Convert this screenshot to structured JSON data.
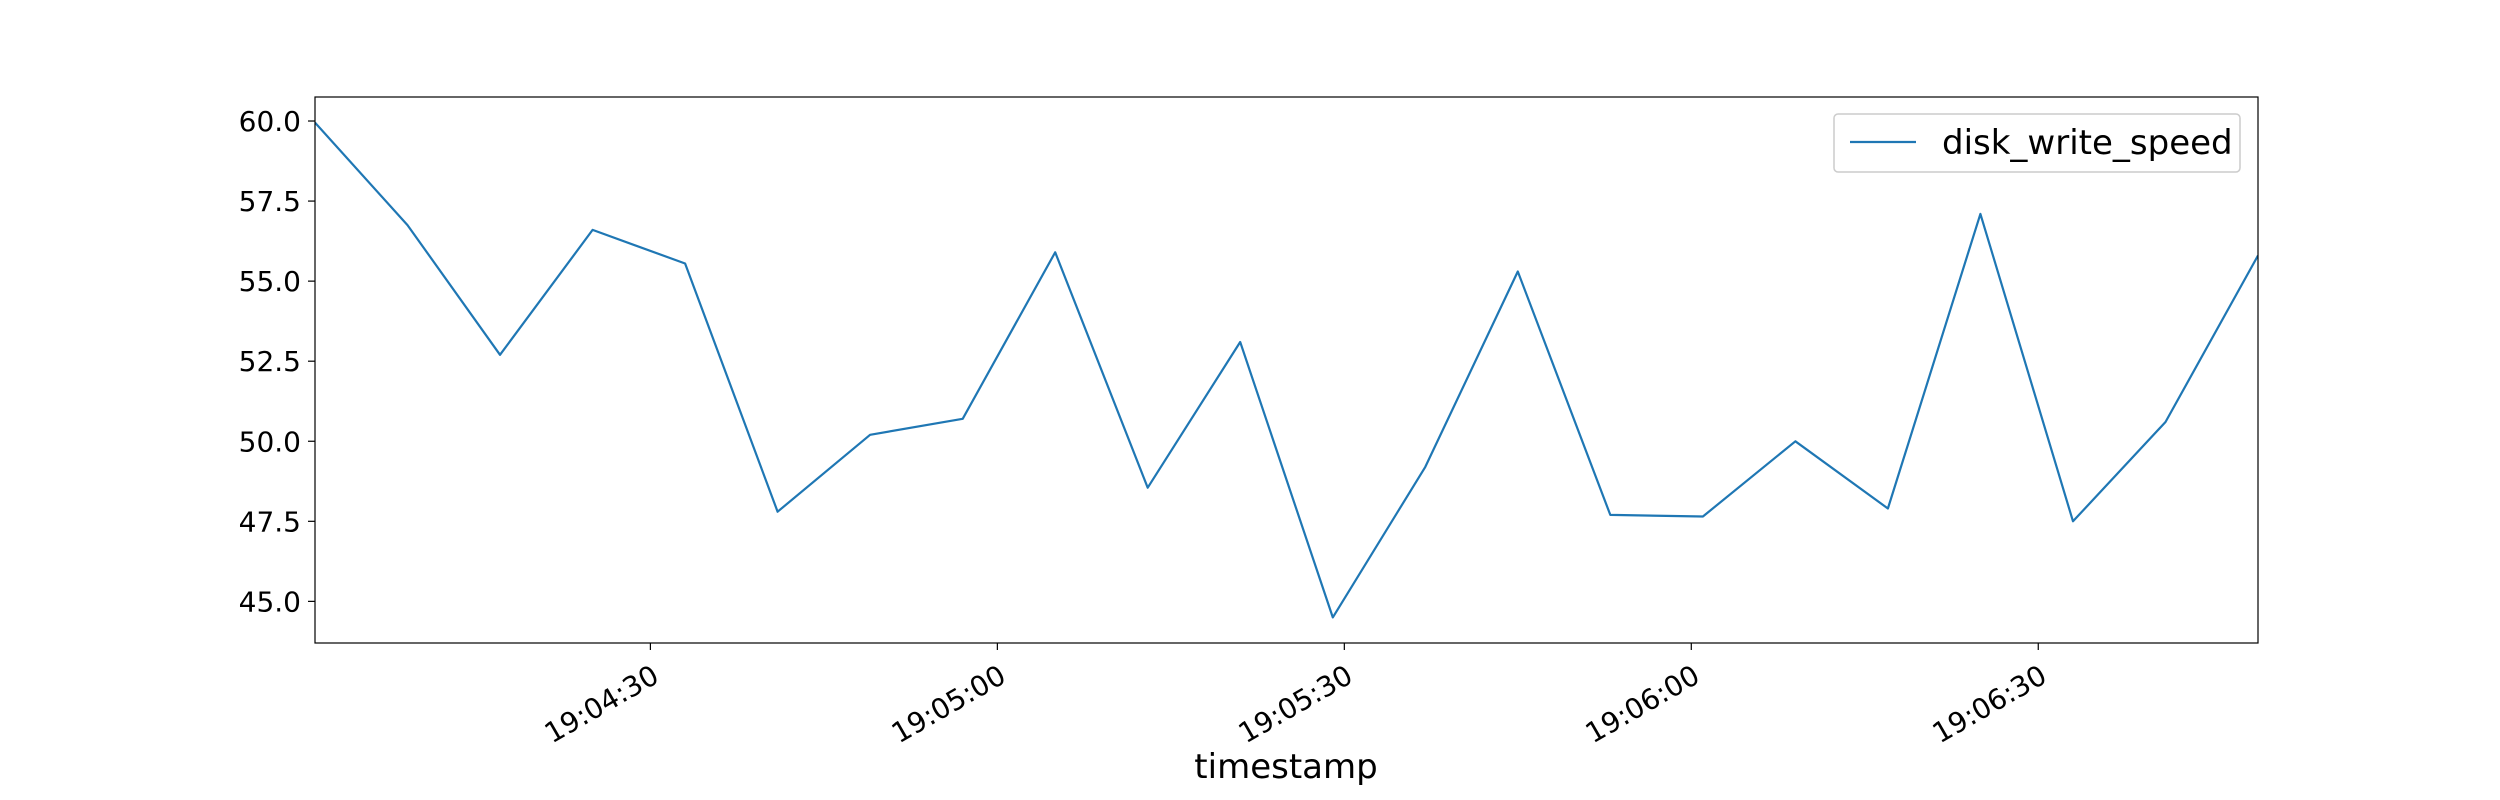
{
  "chart_data": {
    "type": "line",
    "title": "",
    "xlabel": "timestamp",
    "ylabel": "",
    "x": [
      "19:04:01",
      "19:04:09",
      "19:04:17",
      "19:04:25",
      "19:04:33",
      "19:04:41",
      "19:04:49",
      "19:04:57",
      "19:05:05",
      "19:05:13",
      "19:05:21",
      "19:05:29",
      "19:05:37",
      "19:05:45",
      "19:05:53",
      "19:06:01",
      "19:06:09",
      "19:06:17",
      "19:06:25",
      "19:06:33",
      "19:06:41",
      "19:06:49"
    ],
    "series": [
      {
        "name": "disk_write_speed",
        "color": "#1f77b4",
        "values": [
          59.95,
          56.75,
          52.7,
          56.6,
          55.55,
          47.8,
          50.2,
          50.7,
          55.9,
          48.55,
          53.1,
          44.5,
          49.2,
          55.3,
          47.7,
          47.65,
          50.0,
          47.9,
          57.1,
          47.5,
          50.6,
          55.8
        ]
      }
    ],
    "xlim": [
      "19:04:01",
      "19:06:49"
    ],
    "ylim": [
      43.7,
      60.75
    ],
    "xticks": [
      "19:04:30",
      "19:05:00",
      "19:05:30",
      "19:06:00",
      "19:06:30"
    ],
    "yticks": [
      "45.0",
      "47.5",
      "50.0",
      "52.5",
      "55.0",
      "57.5",
      "60.0"
    ],
    "legend_position": "upper right",
    "grid": false
  }
}
